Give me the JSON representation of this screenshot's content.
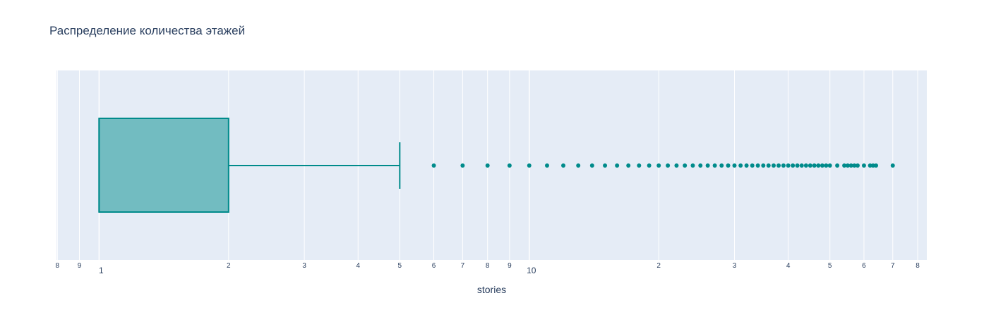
{
  "chart_data": {
    "type": "box",
    "title": "Распределение количества этажей",
    "xlabel": "stories",
    "ylabel": "",
    "x_scale": "log",
    "xlim": [
      0.796,
      84
    ],
    "grid": true,
    "color": "#008b8b",
    "box": {
      "min": 1,
      "q1": 1,
      "median": 1,
      "q3": 2,
      "upper_fence": 5
    },
    "outliers": [
      6,
      7,
      8,
      9,
      10,
      11,
      12,
      13,
      14,
      15,
      16,
      17,
      18,
      19,
      20,
      21,
      22,
      23,
      24,
      25,
      26,
      27,
      28,
      29,
      30,
      31,
      32,
      33,
      34,
      35,
      36,
      37,
      38,
      39,
      40,
      41,
      42,
      43,
      44,
      45,
      46,
      47,
      48,
      49,
      50,
      52,
      54,
      55,
      56,
      57,
      58,
      60,
      62,
      63,
      64,
      70
    ],
    "minor_tick_labels": [
      {
        "value": 0.8,
        "label": "8"
      },
      {
        "value": 0.9,
        "label": "9"
      },
      {
        "value": 2,
        "label": "2"
      },
      {
        "value": 3,
        "label": "3"
      },
      {
        "value": 4,
        "label": "4"
      },
      {
        "value": 5,
        "label": "5"
      },
      {
        "value": 6,
        "label": "6"
      },
      {
        "value": 7,
        "label": "7"
      },
      {
        "value": 8,
        "label": "8"
      },
      {
        "value": 9,
        "label": "9"
      },
      {
        "value": 20,
        "label": "2"
      },
      {
        "value": 30,
        "label": "3"
      },
      {
        "value": 40,
        "label": "4"
      },
      {
        "value": 50,
        "label": "5"
      },
      {
        "value": 60,
        "label": "6"
      },
      {
        "value": 70,
        "label": "7"
      },
      {
        "value": 80,
        "label": "8"
      }
    ],
    "major_tick_labels": [
      {
        "value": 1,
        "label": "1"
      },
      {
        "value": 10,
        "label": "10"
      }
    ]
  }
}
